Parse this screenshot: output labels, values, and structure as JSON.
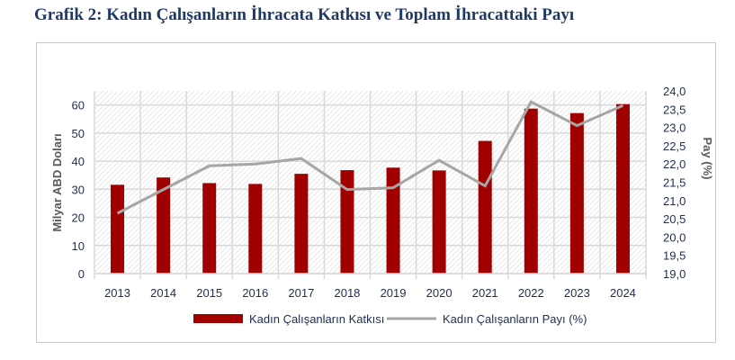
{
  "title": "Grafik 2: Kadın Çalışanların İhracata Katkısı ve Toplam İhracattaki Payı",
  "chart_data": {
    "type": "bar+line",
    "title": "Grafik 2: Kadın Çalışanların İhracata Katkısı ve Toplam İhracattaki Payı",
    "categories": [
      "2013",
      "2014",
      "2015",
      "2016",
      "2017",
      "2018",
      "2019",
      "2020",
      "2021",
      "2022",
      "2023",
      "2024"
    ],
    "series": [
      {
        "name": "Kadın Çalışanların Katkısı",
        "type": "bar",
        "axis": "left",
        "color": "#a00000",
        "values": [
          31.6,
          34.2,
          32.2,
          31.9,
          35.5,
          36.8,
          37.7,
          36.7,
          47.2,
          58.7,
          57.1,
          60.3
        ]
      },
      {
        "name": "Kadın Çalışanların Payı (%)",
        "type": "line",
        "axis": "right",
        "color": "#a6a6a6",
        "values": [
          20.65,
          21.3,
          21.95,
          22.0,
          22.15,
          21.3,
          21.35,
          22.1,
          21.4,
          23.7,
          23.05,
          23.6
        ]
      }
    ],
    "ylabel": "Milyar ABD Doları",
    "ylim": [
      0,
      65
    ],
    "yticks": [
      "0",
      "10",
      "20",
      "30",
      "40",
      "50",
      "60"
    ],
    "y2label": "Pay (%)",
    "y2lim": [
      19,
      24
    ],
    "y2ticks": [
      "19,0",
      "19,5",
      "20,0",
      "20,5",
      "21,0",
      "21,5",
      "22,0",
      "22,5",
      "23,0",
      "23,5",
      "24,0"
    ],
    "legend": "bottom"
  }
}
